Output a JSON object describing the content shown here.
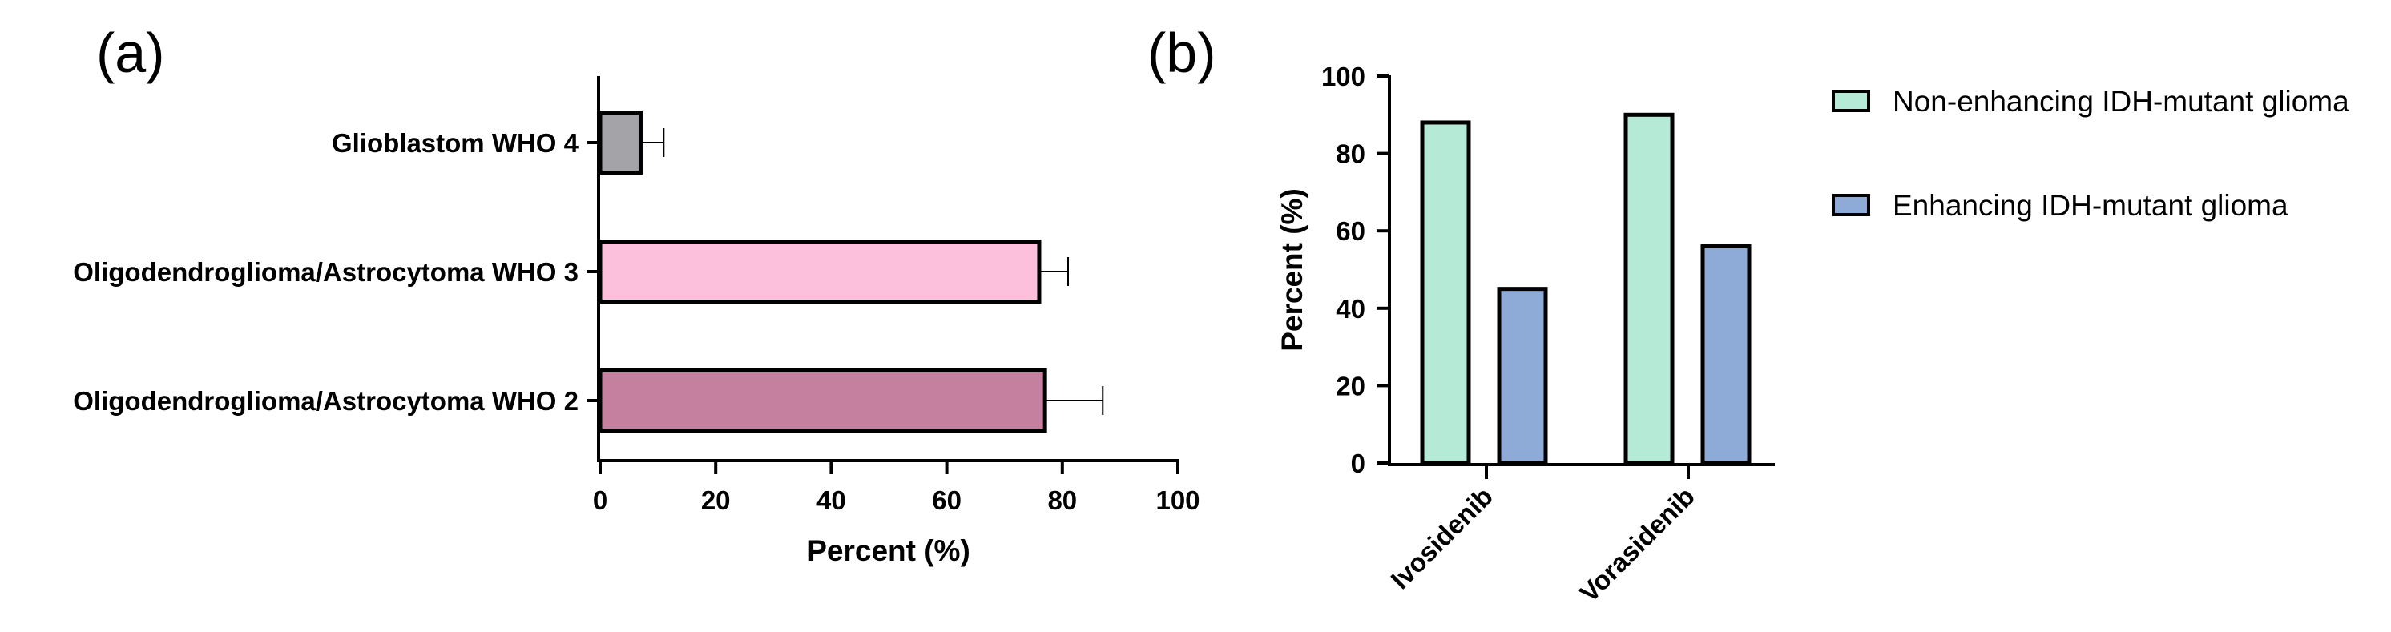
{
  "chart_data": [
    {
      "panel_label": "(a)",
      "type": "bar",
      "orientation": "horizontal",
      "title": "",
      "categories": [
        "Glioblastom WHO 4",
        "Oligodendroglioma/Astrocytoma WHO 3",
        "Oligodendroglioma/Astrocytoma WHO 2"
      ],
      "values": [
        7,
        76,
        77
      ],
      "error_plus": [
        4,
        5,
        10
      ],
      "colors": [
        "#a3a3a8",
        "#fcbfdc",
        "#c57f9f"
      ],
      "xlabel": "Percent  (%)",
      "ylabel": "",
      "xlim": [
        0,
        100
      ],
      "xticks": [
        "0",
        "20",
        "40",
        "60",
        "80",
        "100"
      ]
    },
    {
      "panel_label": "(b)",
      "type": "bar",
      "orientation": "vertical",
      "title": "",
      "categories": [
        "Ivosidenib",
        "Vorasidenib"
      ],
      "series": [
        {
          "name": "Non-enhancing IDH-mutant glioma",
          "values": [
            88,
            90
          ],
          "color": "#b4ead6"
        },
        {
          "name": "Enhancing IDH-mutant glioma",
          "values": [
            45,
            56
          ],
          "color": "#8eaad6"
        }
      ],
      "xlabel": "",
      "ylabel": "Percent (%)",
      "ylim": [
        0,
        100
      ],
      "yticks": [
        "0",
        "20",
        "40",
        "60",
        "80",
        "100"
      ],
      "legend_position": "right"
    }
  ]
}
